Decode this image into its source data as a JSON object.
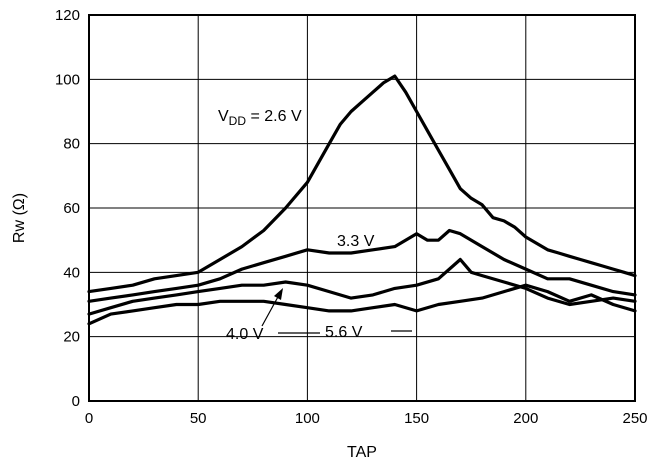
{
  "chart_data": {
    "type": "line",
    "title": "",
    "xlabel": "TAP",
    "ylabel": "Rw (Ω)",
    "xlim": [
      0,
      250
    ],
    "ylim": [
      0,
      120
    ],
    "xticks": [
      0,
      50,
      100,
      150,
      200,
      250
    ],
    "yticks": [
      0,
      20,
      40,
      60,
      80,
      100,
      120
    ],
    "grid": true,
    "legend": "none",
    "series": [
      {
        "name": "V_DD = 2.6 V",
        "label_prefix": "V",
        "label_sub": "DD",
        "label_suffix": " = 2.6 V",
        "x": [
          0,
          10,
          20,
          30,
          40,
          50,
          60,
          70,
          80,
          90,
          100,
          110,
          115,
          120,
          125,
          130,
          135,
          140,
          145,
          150,
          155,
          160,
          165,
          170,
          175,
          180,
          185,
          190,
          195,
          200,
          205,
          210,
          215,
          220,
          225,
          230,
          235,
          240,
          245,
          250
        ],
        "y": [
          34,
          35,
          36,
          38,
          39,
          40,
          44,
          48,
          53,
          60,
          68,
          80,
          86,
          90,
          93,
          96,
          99,
          101,
          96,
          90,
          84,
          78,
          72,
          66,
          63,
          61,
          57,
          56,
          54,
          51,
          49,
          47,
          46,
          45,
          44,
          43,
          42,
          41,
          40,
          39
        ]
      },
      {
        "name": "3.3 V",
        "label": "3.3 V",
        "x": [
          0,
          10,
          20,
          30,
          40,
          50,
          60,
          70,
          80,
          90,
          100,
          110,
          120,
          130,
          140,
          150,
          155,
          160,
          165,
          170,
          180,
          190,
          200,
          210,
          220,
          230,
          240,
          250
        ],
        "y": [
          31,
          32,
          33,
          34,
          35,
          36,
          38,
          41,
          43,
          45,
          47,
          46,
          46,
          47,
          48,
          52,
          50,
          50,
          53,
          52,
          48,
          44,
          41,
          38,
          38,
          36,
          34,
          33
        ]
      },
      {
        "name": "4.0 V",
        "label": "4.0 V",
        "x": [
          0,
          10,
          20,
          30,
          40,
          50,
          60,
          70,
          80,
          90,
          100,
          110,
          120,
          130,
          140,
          150,
          160,
          170,
          175,
          180,
          190,
          200,
          210,
          220,
          230,
          240,
          250
        ],
        "y": [
          27,
          29,
          31,
          32,
          33,
          34,
          35,
          36,
          36,
          37,
          36,
          34,
          32,
          33,
          35,
          36,
          38,
          44,
          40,
          39,
          37,
          35,
          32,
          30,
          31,
          32,
          31
        ]
      },
      {
        "name": "5.6 V",
        "label": "5.6 V",
        "x": [
          0,
          10,
          20,
          30,
          40,
          50,
          60,
          70,
          80,
          90,
          100,
          110,
          120,
          130,
          140,
          150,
          160,
          170,
          180,
          190,
          200,
          210,
          220,
          230,
          240,
          250
        ],
        "y": [
          24,
          27,
          28,
          29,
          30,
          30,
          31,
          31,
          31,
          30,
          29,
          28,
          28,
          29,
          30,
          28,
          30,
          31,
          32,
          34,
          36,
          34,
          31,
          33,
          30,
          28
        ]
      }
    ]
  }
}
